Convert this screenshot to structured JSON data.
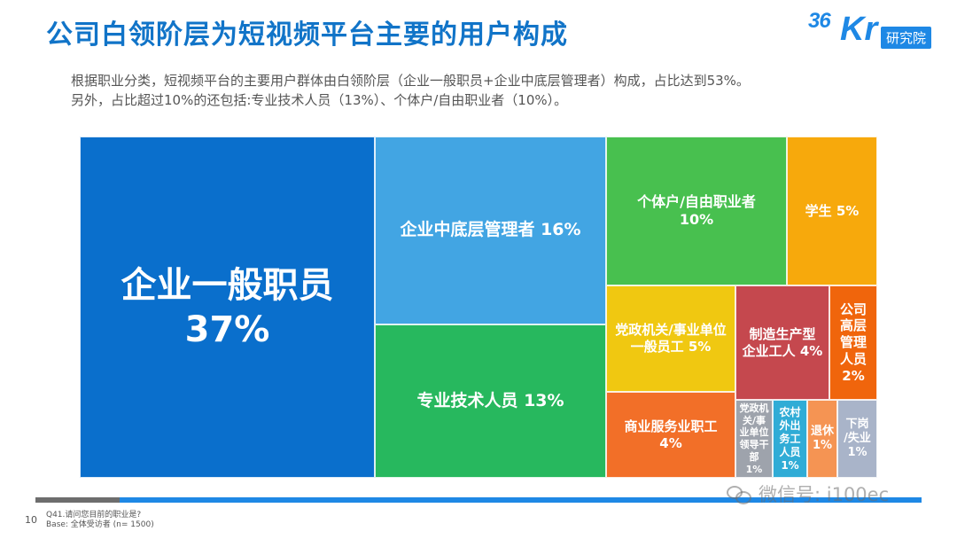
{
  "header": {
    "title": "公司白领阶层为短视频平台主要的用户构成",
    "logo_number": "36",
    "logo_letters": "Kr",
    "logo_tag": "研究院"
  },
  "description": {
    "line1": "根据职业分类，短视频平台的主要用户群体由白领阶层（企业一般职员+企业中底层管理者）构成，占比达到53%。",
    "line2": "另外，占比超过10%的还包括:专业技术人员（13%）、个体户/自由职业者（10%）。"
  },
  "chart_data": {
    "type": "treemap",
    "unit": "%",
    "items": [
      {
        "name": "企业一般职员",
        "value": 37,
        "label": "37%",
        "color": "#0a6fcc"
      },
      {
        "name": "企业中底层管理者",
        "value": 16,
        "label": "16%",
        "color": "#42a5e3"
      },
      {
        "name": "专业技术人员",
        "value": 13,
        "label": "13%",
        "color": "#27b85e"
      },
      {
        "name": "个体户/自由职业者",
        "value": 10,
        "label": "10%",
        "color": "#48c04f"
      },
      {
        "name": "学生",
        "value": 5,
        "label": "5%",
        "color": "#f7a90c"
      },
      {
        "name": "党政机关/事业单位一般员工",
        "value": 5,
        "label": "5%",
        "color": "#f0c811"
      },
      {
        "name": "商业服务业职工",
        "value": 4,
        "label": "4%",
        "color": "#f26f28"
      },
      {
        "name": "制造生产型企业工人",
        "value": 4,
        "label": "4%",
        "color": "#c5484e"
      },
      {
        "name": "公司高层管理人员",
        "value": 2,
        "label": "2%",
        "color": "#f0650c"
      },
      {
        "name": "党政机关/事业单位领导干部",
        "value": 1,
        "label": "1%",
        "color": "#9ea3ac"
      },
      {
        "name": "农村外出务工人员",
        "value": 1,
        "label": "1%",
        "color": "#30acd6"
      },
      {
        "name": "退休",
        "value": 1,
        "label": "1%",
        "color": "#f59453"
      },
      {
        "name": "下岗/失业",
        "value": 1,
        "label": "1%",
        "color": "#a9b4c9"
      }
    ]
  },
  "footer": {
    "page_number": "10",
    "question": "Q41.请问您目前的职业是?",
    "base": "Base: 全体受访者 (n= 1500)",
    "watermark": "微信号: i100ec"
  }
}
